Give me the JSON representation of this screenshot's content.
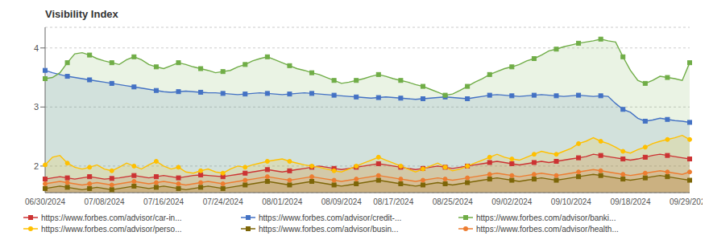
{
  "chart_data": {
    "type": "line",
    "title": "Visibility Index",
    "categories": [
      "06/30/2024",
      null,
      null,
      null,
      null,
      null,
      null,
      null,
      "07/08/2024",
      null,
      null,
      null,
      null,
      null,
      null,
      null,
      "07/16/2024",
      null,
      null,
      null,
      null,
      null,
      null,
      null,
      "07/24/2024",
      null,
      null,
      null,
      null,
      null,
      null,
      null,
      "08/01/2024",
      null,
      null,
      null,
      null,
      null,
      null,
      null,
      "08/09/2024",
      null,
      null,
      null,
      null,
      null,
      null,
      "08/17/2024",
      null,
      null,
      null,
      null,
      null,
      null,
      null,
      "08/25/2024",
      null,
      null,
      null,
      null,
      null,
      null,
      null,
      "09/02/2024",
      null,
      null,
      null,
      null,
      null,
      null,
      null,
      "09/10/2024",
      null,
      null,
      null,
      null,
      null,
      null,
      null,
      "09/18/2024",
      null,
      null,
      null,
      null,
      null,
      null,
      null,
      "09/29/2024"
    ],
    "ylim": [
      1.55,
      4.35
    ],
    "yticks": [
      2,
      3,
      4
    ],
    "grid": true,
    "series": [
      {
        "name": "https://www.forbes.com/advisor/car-in...",
        "color": "#cc3333",
        "marker": "square",
        "values": [
          1.78,
          1.8,
          1.82,
          1.8,
          1.78,
          1.8,
          1.82,
          1.8,
          1.78,
          1.79,
          1.8,
          1.82,
          1.84,
          1.82,
          1.8,
          1.82,
          1.84,
          1.82,
          1.8,
          1.82,
          1.84,
          1.85,
          1.84,
          1.83,
          1.82,
          1.84,
          1.86,
          1.88,
          1.9,
          1.92,
          1.94,
          1.92,
          1.9,
          1.92,
          1.94,
          1.96,
          1.98,
          2.0,
          1.98,
          1.96,
          1.94,
          1.96,
          1.98,
          2.0,
          2.02,
          2.04,
          2.02,
          2.0,
          1.98,
          1.96,
          1.94,
          1.96,
          1.98,
          2.0,
          1.98,
          1.96,
          1.98,
          2.0,
          2.02,
          2.04,
          2.06,
          2.08,
          2.06,
          2.04,
          2.02,
          2.04,
          2.06,
          2.08,
          2.06,
          2.08,
          2.1,
          2.12,
          2.14,
          2.16,
          2.2,
          2.18,
          2.16,
          2.14,
          2.12,
          2.1,
          2.12,
          2.15,
          2.18,
          2.2,
          2.18,
          2.16,
          2.14,
          2.12
        ]
      },
      {
        "name": "https://www.forbes.com/advisor/credit-...",
        "color": "#4472c4",
        "marker": "square",
        "values": [
          3.62,
          3.58,
          3.55,
          3.52,
          3.5,
          3.48,
          3.46,
          3.44,
          3.42,
          3.4,
          3.38,
          3.36,
          3.34,
          3.32,
          3.3,
          3.28,
          3.26,
          3.25,
          3.26,
          3.27,
          3.26,
          3.25,
          3.24,
          3.24,
          3.23,
          3.22,
          3.21,
          3.22,
          3.23,
          3.24,
          3.23,
          3.22,
          3.21,
          3.22,
          3.23,
          3.24,
          3.23,
          3.22,
          3.21,
          3.2,
          3.19,
          3.18,
          3.17,
          3.16,
          3.15,
          3.16,
          3.17,
          3.16,
          3.15,
          3.14,
          3.13,
          3.14,
          3.15,
          3.16,
          3.17,
          3.16,
          3.15,
          3.14,
          3.16,
          3.18,
          3.2,
          3.21,
          3.2,
          3.19,
          3.18,
          3.19,
          3.2,
          3.21,
          3.2,
          3.19,
          3.18,
          3.19,
          3.2,
          3.19,
          3.18,
          3.19,
          3.18,
          3.06,
          2.96,
          2.91,
          2.81,
          2.76,
          2.78,
          2.81,
          2.79,
          2.77,
          2.76,
          2.74
        ]
      },
      {
        "name": "https://www.forbes.com/advisor/banki...",
        "color": "#70ad47",
        "marker": "square",
        "values": [
          3.48,
          3.5,
          3.58,
          3.75,
          3.9,
          3.92,
          3.88,
          3.82,
          3.78,
          3.75,
          3.72,
          3.8,
          3.85,
          3.8,
          3.72,
          3.68,
          3.65,
          3.7,
          3.75,
          3.72,
          3.68,
          3.65,
          3.62,
          3.58,
          3.6,
          3.62,
          3.68,
          3.72,
          3.78,
          3.82,
          3.85,
          3.8,
          3.75,
          3.7,
          3.65,
          3.62,
          3.58,
          3.55,
          3.5,
          3.45,
          3.4,
          3.42,
          3.45,
          3.48,
          3.52,
          3.55,
          3.52,
          3.48,
          3.45,
          3.42,
          3.38,
          3.35,
          3.3,
          3.25,
          3.2,
          3.22,
          3.28,
          3.35,
          3.42,
          3.48,
          3.55,
          3.6,
          3.65,
          3.68,
          3.72,
          3.78,
          3.82,
          3.88,
          3.95,
          3.98,
          4.02,
          4.05,
          4.08,
          4.1,
          4.12,
          4.15,
          4.12,
          4.1,
          3.85,
          3.62,
          3.45,
          3.4,
          3.45,
          3.52,
          3.5,
          3.48,
          3.45,
          3.75
        ]
      },
      {
        "name": "https://www.forbes.com/advisor/perso...",
        "color": "#ffc000",
        "marker": "circle",
        "values": [
          2.02,
          2.15,
          2.18,
          2.05,
          1.98,
          1.95,
          1.98,
          2.02,
          1.95,
          1.92,
          1.98,
          2.05,
          2.0,
          1.95,
          2.02,
          2.08,
          2.0,
          1.95,
          1.98,
          1.9,
          1.88,
          1.92,
          1.95,
          1.9,
          1.88,
          1.95,
          2.0,
          1.98,
          2.02,
          2.05,
          2.08,
          2.1,
          2.12,
          2.08,
          2.05,
          2.02,
          2.0,
          1.98,
          1.95,
          1.92,
          1.9,
          1.95,
          2.0,
          2.05,
          2.1,
          2.15,
          2.1,
          2.05,
          2.0,
          1.95,
          1.9,
          1.95,
          2.0,
          2.05,
          1.98,
          1.92,
          1.95,
          2.0,
          2.05,
          2.1,
          2.15,
          2.2,
          2.15,
          2.12,
          2.1,
          2.15,
          2.2,
          2.25,
          2.22,
          2.2,
          2.25,
          2.3,
          2.38,
          2.42,
          2.48,
          2.42,
          2.38,
          2.32,
          2.25,
          2.22,
          2.28,
          2.32,
          2.38,
          2.42,
          2.45,
          2.48,
          2.52,
          2.45
        ]
      },
      {
        "name": "https://www.forbes.com/advisor/busin...",
        "color": "#7d6608",
        "marker": "square",
        "values": [
          1.62,
          1.64,
          1.66,
          1.64,
          1.62,
          1.6,
          1.62,
          1.64,
          1.62,
          1.6,
          1.62,
          1.64,
          1.66,
          1.64,
          1.62,
          1.64,
          1.66,
          1.64,
          1.62,
          1.6,
          1.62,
          1.64,
          1.66,
          1.64,
          1.62,
          1.64,
          1.66,
          1.68,
          1.7,
          1.72,
          1.74,
          1.72,
          1.7,
          1.68,
          1.7,
          1.72,
          1.74,
          1.72,
          1.7,
          1.68,
          1.66,
          1.68,
          1.7,
          1.72,
          1.74,
          1.76,
          1.74,
          1.72,
          1.7,
          1.68,
          1.66,
          1.68,
          1.7,
          1.72,
          1.7,
          1.68,
          1.7,
          1.72,
          1.74,
          1.76,
          1.78,
          1.8,
          1.78,
          1.76,
          1.74,
          1.76,
          1.78,
          1.8,
          1.78,
          1.76,
          1.78,
          1.8,
          1.82,
          1.84,
          1.86,
          1.84,
          1.82,
          1.8,
          1.78,
          1.76,
          1.78,
          1.8,
          1.82,
          1.84,
          1.82,
          1.8,
          1.78,
          1.76
        ]
      },
      {
        "name": "https://www.forbes.com/advisor/health...",
        "color": "#ed7d31",
        "marker": "circle",
        "values": [
          1.7,
          1.72,
          1.74,
          1.72,
          1.7,
          1.68,
          1.7,
          1.72,
          1.7,
          1.68,
          1.7,
          1.72,
          1.74,
          1.72,
          1.7,
          1.72,
          1.74,
          1.72,
          1.7,
          1.68,
          1.7,
          1.72,
          1.74,
          1.72,
          1.7,
          1.72,
          1.74,
          1.76,
          1.78,
          1.8,
          1.82,
          1.8,
          1.78,
          1.76,
          1.78,
          1.8,
          1.82,
          1.8,
          1.78,
          1.76,
          1.74,
          1.76,
          1.78,
          1.8,
          1.82,
          1.84,
          1.82,
          1.8,
          1.78,
          1.76,
          1.74,
          1.76,
          1.78,
          1.8,
          1.78,
          1.76,
          1.78,
          1.8,
          1.82,
          1.84,
          1.86,
          1.88,
          1.86,
          1.84,
          1.82,
          1.84,
          1.86,
          1.88,
          1.86,
          1.84,
          1.86,
          1.88,
          1.9,
          1.92,
          1.94,
          1.92,
          1.9,
          1.88,
          1.86,
          1.84,
          1.86,
          1.88,
          1.9,
          1.92,
          1.9,
          1.88,
          1.86,
          1.9
        ]
      }
    ]
  }
}
